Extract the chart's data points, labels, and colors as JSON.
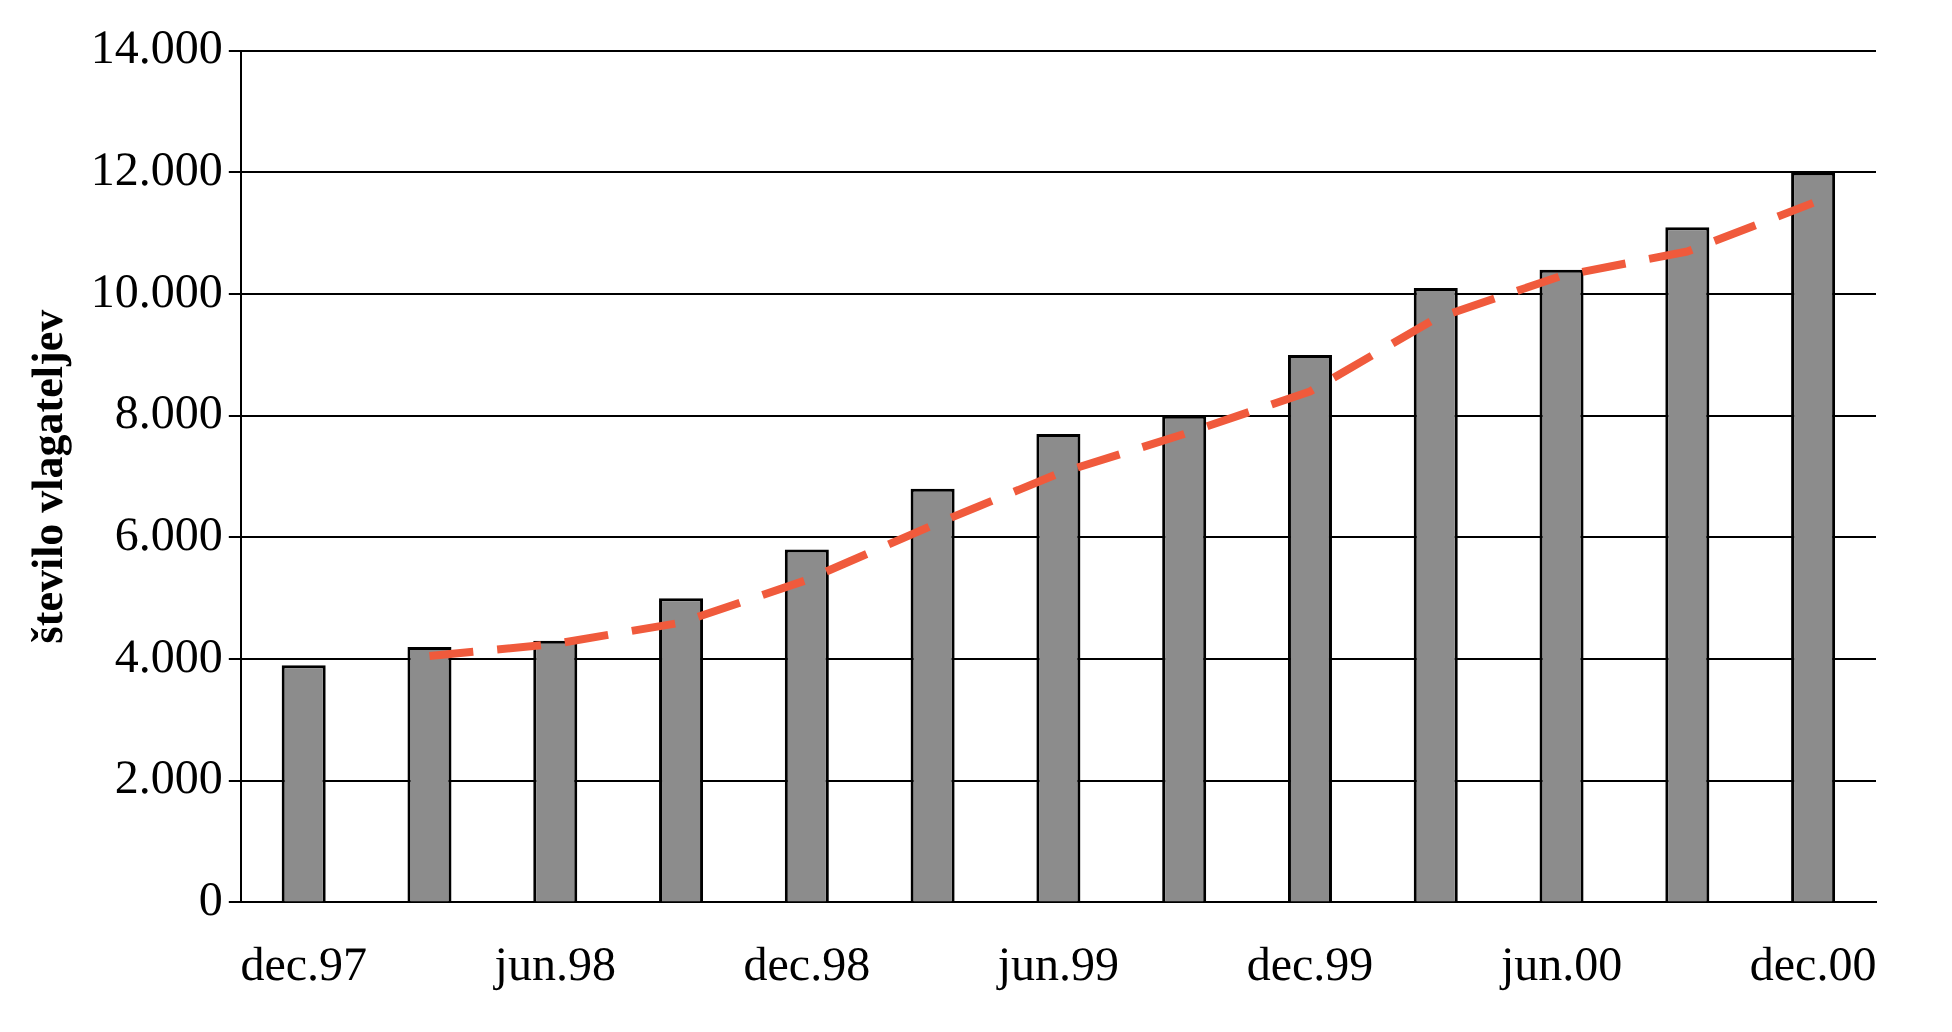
{
  "chart_data": {
    "type": "bar",
    "ylabel": "število vlagateljev",
    "categories": [
      "dec.97",
      null,
      "jun.98",
      null,
      "dec.98",
      null,
      "jun.99",
      null,
      "dec.99",
      null,
      "jun.00",
      null,
      "dec.00"
    ],
    "series": [
      {
        "color": "#8c8c8c",
        "values": [
          3900,
          4200,
          4300,
          5000,
          5800,
          6800,
          7700,
          8000,
          9000,
          10100,
          10400,
          11100,
          12000
        ]
      },
      {
        "type": "line",
        "color": "#f05a3c",
        "line_style": "dashed",
        "marker": "none",
        "values": [
          null,
          4050,
          4250,
          4600,
          5300,
          6200,
          7050,
          7700,
          8400,
          9600,
          10300,
          10700,
          11500
        ]
      }
    ],
    "ylim": [
      0,
      14000
    ],
    "yticks": [
      {
        "value": 0,
        "label": "0"
      },
      {
        "value": 2000,
        "label": "2.000"
      },
      {
        "value": 4000,
        "label": "4.000"
      },
      {
        "value": 6000,
        "label": "6.000"
      },
      {
        "value": 8000,
        "label": "8.000"
      },
      {
        "value": 10000,
        "label": "10.000"
      },
      {
        "value": 12000,
        "label": "12.000"
      },
      {
        "value": 14000,
        "label": "14.000"
      }
    ],
    "grid": "y",
    "legend": false
  }
}
